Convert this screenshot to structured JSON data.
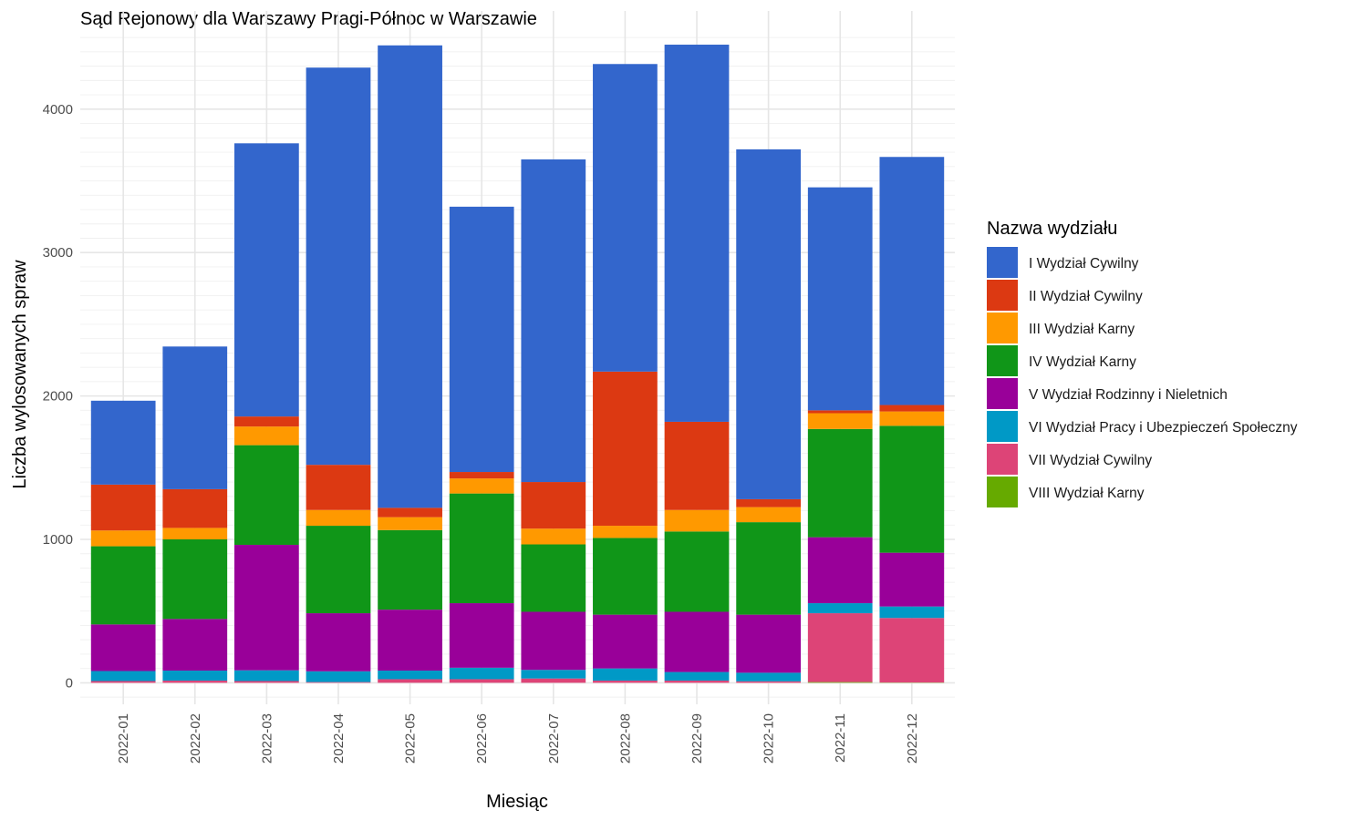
{
  "chart_data": {
    "type": "bar",
    "stacked": true,
    "title": "Sąd Rejonowy dla Warszawy Pragi-Północ w Warszawie",
    "xlabel": "Miesiąc",
    "ylabel": "Liczba wylosowanych spraw",
    "ylim": [
      -150,
      4520
    ],
    "yticks": [
      0,
      1000,
      2000,
      3000,
      4000
    ],
    "grid": true,
    "legend_position": "right",
    "legend_title": "Nazwa wydziału",
    "categories": [
      "2022-01",
      "2022-02",
      "2022-03",
      "2022-04",
      "2022-05",
      "2022-06",
      "2022-07",
      "2022-08",
      "2022-09",
      "2022-10",
      "2022-11",
      "2022-12"
    ],
    "series": [
      {
        "name": "VIII Wydział Karny",
        "color": "#66aa00",
        "values": [
          0,
          0,
          0,
          0,
          0,
          0,
          0,
          0,
          0,
          0,
          5,
          2
        ]
      },
      {
        "name": "VII Wydział Cywilny",
        "color": "#dd4477",
        "values": [
          12,
          15,
          12,
          5,
          25,
          25,
          30,
          15,
          15,
          10,
          480,
          450
        ]
      },
      {
        "name": "VI Wydział Pracy i Ubezpieczeń Społeczny",
        "color": "#0099c6",
        "values": [
          70,
          70,
          75,
          75,
          60,
          80,
          60,
          85,
          60,
          60,
          70,
          80
        ]
      },
      {
        "name": "V Wydział Rodzinny i Nieletnich",
        "color": "#990099",
        "values": [
          325,
          360,
          875,
          405,
          425,
          450,
          405,
          375,
          420,
          405,
          460,
          375
        ]
      },
      {
        "name": "IV Wydział Karny",
        "color": "#109618",
        "values": [
          545,
          555,
          695,
          610,
          555,
          765,
          470,
          535,
          560,
          645,
          755,
          885
        ]
      },
      {
        "name": "III Wydział Karny",
        "color": "#ff9900",
        "values": [
          110,
          80,
          130,
          110,
          90,
          105,
          110,
          85,
          150,
          105,
          110,
          100
        ]
      },
      {
        "name": "II Wydział Cywilny",
        "color": "#dc3912",
        "values": [
          320,
          270,
          70,
          315,
          65,
          45,
          325,
          1075,
          615,
          55,
          20,
          45
        ]
      },
      {
        "name": "I Wydział Cywilny",
        "color": "#3366cc",
        "values": [
          585,
          995,
          1905,
          2770,
          3225,
          1850,
          2250,
          2145,
          2630,
          2440,
          1555,
          1730
        ]
      }
    ],
    "legend_order": [
      "I Wydział Cywilny",
      "II Wydział Cywilny",
      "III Wydział Karny",
      "IV Wydział Karny",
      "V Wydział Rodzinny i Nieletnich",
      "VI Wydział Pracy i Ubezpieczeń Społeczny",
      "VII Wydział Cywilny",
      "VIII Wydział Karny"
    ]
  }
}
